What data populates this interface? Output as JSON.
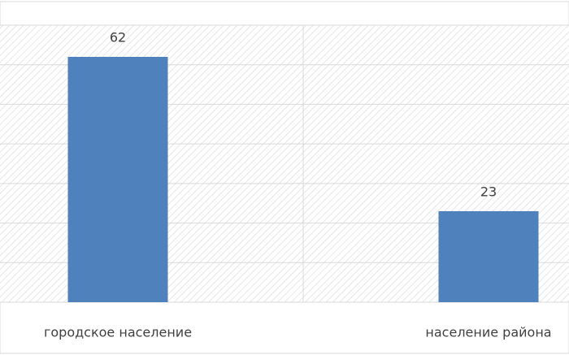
{
  "chart_data": {
    "type": "bar",
    "categories": [
      "городское население",
      "население района"
    ],
    "values": [
      62,
      23
    ],
    "color": "#4f81bd",
    "ylim": [
      0,
      70
    ],
    "yticks": [
      0,
      10,
      20,
      30,
      40,
      50,
      60,
      70
    ],
    "grid": true
  }
}
